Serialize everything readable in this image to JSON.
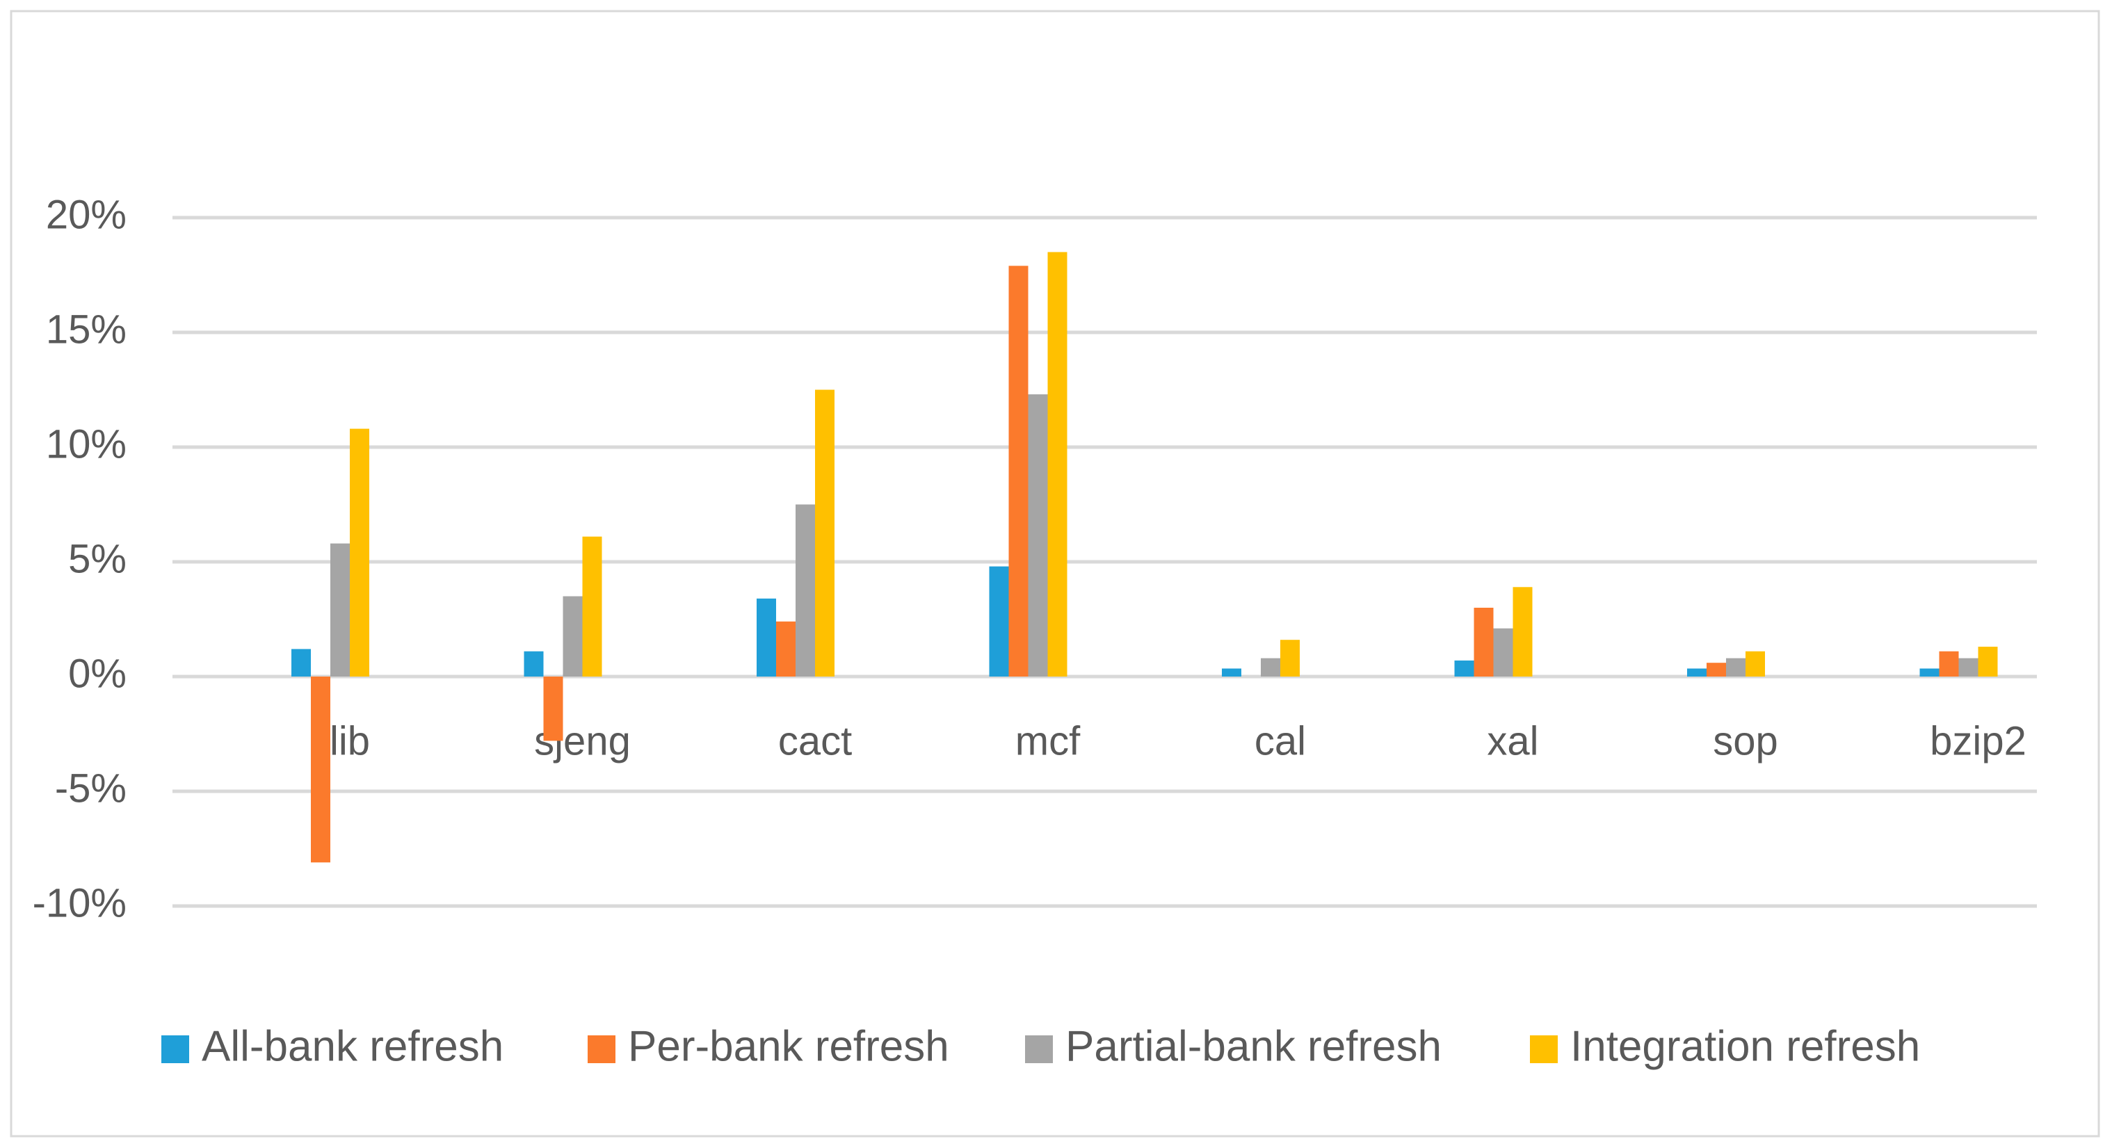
{
  "chart_data": {
    "type": "bar",
    "categories": [
      "lib",
      "sjeng",
      "cact",
      "mcf",
      "cal",
      "xal",
      "sop",
      "bzip2"
    ],
    "series": [
      {
        "name": "All-bank refresh",
        "color": "#1f9fd8",
        "values": [
          1.2,
          1.1,
          3.4,
          4.8,
          0.35,
          0.7,
          0.35,
          0.35
        ]
      },
      {
        "name": "Per-bank refresh",
        "color": "#fb7a2c",
        "values": [
          -8.1,
          -2.8,
          2.4,
          17.9,
          0,
          3.0,
          0.6,
          1.1
        ]
      },
      {
        "name": "Partial-bank refresh",
        "color": "#a5a5a5",
        "values": [
          5.8,
          3.5,
          7.5,
          12.3,
          0.8,
          2.1,
          0.8,
          0.8
        ]
      },
      {
        "name": "Integration refresh",
        "color": "#ffc000",
        "values": [
          10.8,
          6.1,
          12.5,
          18.5,
          1.6,
          3.9,
          1.1,
          1.3
        ]
      }
    ],
    "ylim": [
      -10,
      20
    ],
    "yticks": [
      {
        "value": -10,
        "label": "-10%"
      },
      {
        "value": -5,
        "label": "-5%"
      },
      {
        "value": 0,
        "label": "0%"
      },
      {
        "value": 5,
        "label": "5%"
      },
      {
        "value": 10,
        "label": "10%"
      },
      {
        "value": 15,
        "label": "15%"
      },
      {
        "value": 20,
        "label": "20%"
      }
    ],
    "grid": true,
    "legend": "bottom"
  }
}
